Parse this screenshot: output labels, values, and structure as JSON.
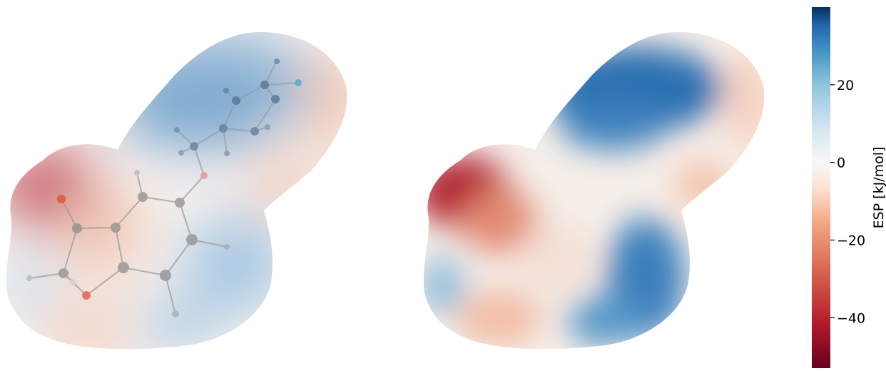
{
  "figure": {
    "panels": [
      {
        "view": "surface with ball-and-stick molecule overlay"
      },
      {
        "view": "surface only"
      }
    ]
  },
  "colorbar": {
    "label": "ESP [kJ/mol]",
    "range": [
      -53,
      40
    ],
    "ticks": [
      {
        "value": 20,
        "label": "20"
      },
      {
        "value": 0,
        "label": "0"
      },
      {
        "value": -20,
        "label": "−20"
      },
      {
        "value": -40,
        "label": "−40"
      }
    ],
    "colormap": "RdBu",
    "colors": {
      "low": "#67001f",
      "mid": "#f7f7f7",
      "high": "#053061"
    }
  },
  "atoms": {
    "carbon_color": "#8a8a8a",
    "oxygen_color": "#e34a33",
    "fluorine_color": "#3fa7d6",
    "hydrogen_color": "#b5b5b5"
  }
}
